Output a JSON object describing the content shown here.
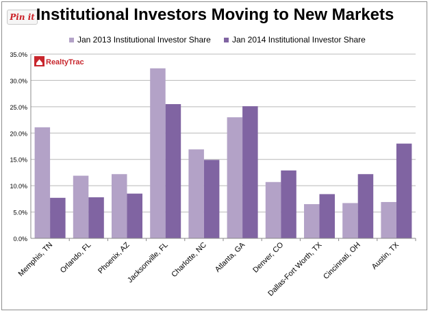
{
  "pin_button": {
    "label": "Pin it"
  },
  "logo": {
    "text": "RealtyTrac"
  },
  "colors": {
    "series_2013": "#b3a2c7",
    "series_2014": "#8064a2",
    "grid": "#b8b8b8",
    "pin_red": "#cb2027",
    "logo_red": "#c8262d"
  },
  "chart_data": {
    "type": "bar",
    "title": "Institutional Investors Moving to New Markets",
    "categories": [
      "Memphis, TN",
      "Orlando, FL",
      "Phoenix, AZ",
      "Jacksonville, FL",
      "Charlotte, NC",
      "Atlanta, GA",
      "Denver, CO",
      "Dallas-Fort Worth, TX",
      "Cincinnati, OH",
      "Austin, TX"
    ],
    "series": [
      {
        "name": "Jan 2013 Institutional Investor Share",
        "values": [
          21.1,
          11.9,
          12.2,
          32.3,
          16.9,
          23.0,
          10.7,
          6.5,
          6.7,
          6.9
        ]
      },
      {
        "name": "Jan 2014 Institutional Investor Share",
        "values": [
          7.7,
          7.8,
          8.5,
          25.5,
          14.9,
          25.1,
          12.9,
          8.4,
          12.2,
          18.0
        ]
      }
    ],
    "yticks": [
      "0.0%",
      "5.0%",
      "10.0%",
      "15.0%",
      "20.0%",
      "25.0%",
      "30.0%",
      "35.0%"
    ],
    "ylim": [
      0,
      35
    ],
    "grid": true,
    "legend": "top"
  }
}
